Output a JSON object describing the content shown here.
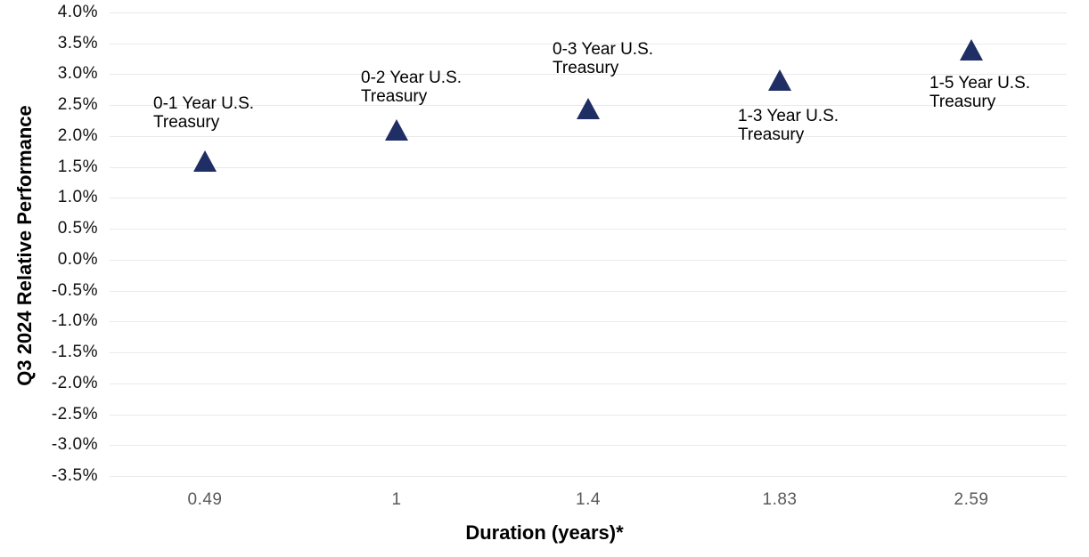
{
  "chart_data": {
    "type": "scatter",
    "xlabel": "Duration (years)*",
    "ylabel": "Q3 2024 Relative Performance",
    "x_tick_labels": [
      "0.49",
      "1",
      "1.4",
      "1.83",
      "2.59"
    ],
    "points": [
      {
        "name": "0-1 Year U.S. Treasury",
        "label_lines": [
          "0-1 Year U.S.",
          "Treasury"
        ],
        "duration_years": 0.49,
        "relative_performance_pct": 1.6,
        "label_side": "above"
      },
      {
        "name": "0-2 Year U.S. Treasury",
        "label_lines": [
          "0-2 Year U.S.",
          "Treasury"
        ],
        "duration_years": 1,
        "relative_performance_pct": 2.1,
        "label_side": "above"
      },
      {
        "name": "0-3 Year U.S. Treasury",
        "label_lines": [
          "0-3 Year U.S.",
          "Treasury"
        ],
        "duration_years": 1.4,
        "relative_performance_pct": 2.45,
        "label_side": "above"
      },
      {
        "name": "1-3 Year U.S. Treasury",
        "label_lines": [
          "1-3 Year U.S.",
          "Treasury"
        ],
        "duration_years": 1.83,
        "relative_performance_pct": 2.9,
        "label_side": "below"
      },
      {
        "name": "1-5 Year U.S. Treasury",
        "label_lines": [
          "1-5 Year U.S.",
          "Treasury"
        ],
        "duration_years": 2.59,
        "relative_performance_pct": 3.4,
        "label_side": "below"
      }
    ],
    "ylim": [
      -3.5,
      4.0
    ],
    "y_tick_step": 0.5,
    "y_tick_format": "0.0%",
    "grid": "horizontal-only",
    "legend": "none",
    "marker_shape": "triangle-up",
    "colors": {
      "marker": "#1f2e64",
      "gridline": "#eaeaea",
      "y_tick_text": "#111111",
      "x_tick_text": "#595959",
      "axis_title_text": "#000000",
      "background": "#ffffff"
    }
  }
}
